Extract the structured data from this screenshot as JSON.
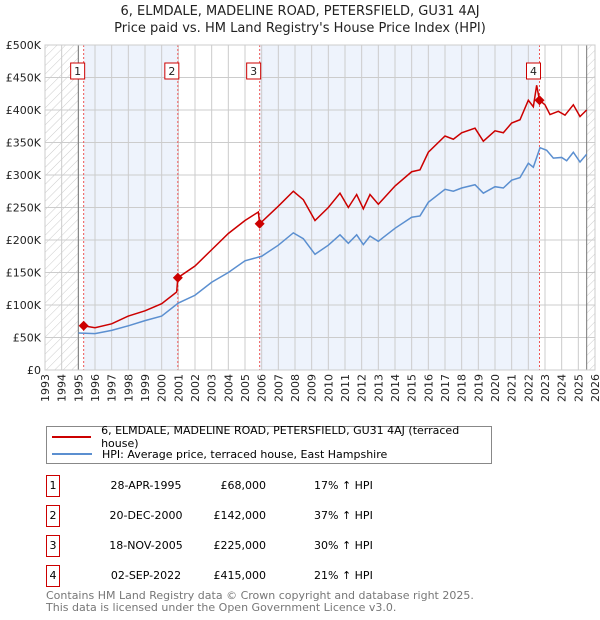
{
  "title_line1": "6, ELMDALE, MADELINE ROAD, PETERSFIELD, GU31 4AJ",
  "title_line2": "Price paid vs. HM Land Registry's House Price Index (HPI)",
  "chart_data": {
    "type": "line",
    "xlim": [
      1993,
      2026
    ],
    "ylim": [
      0,
      500000
    ],
    "yticks": [
      {
        "v": 0,
        "label": "£0"
      },
      {
        "v": 50000,
        "label": "£50K"
      },
      {
        "v": 100000,
        "label": "£100K"
      },
      {
        "v": 150000,
        "label": "£150K"
      },
      {
        "v": 200000,
        "label": "£200K"
      },
      {
        "v": 250000,
        "label": "£250K"
      },
      {
        "v": 300000,
        "label": "£300K"
      },
      {
        "v": 350000,
        "label": "£350K"
      },
      {
        "v": 400000,
        "label": "£400K"
      },
      {
        "v": 450000,
        "label": "£450K"
      },
      {
        "v": 500000,
        "label": "£500K"
      }
    ],
    "xticks": [
      "1993",
      "1994",
      "1995",
      "1996",
      "1997",
      "1998",
      "1999",
      "2000",
      "2001",
      "2002",
      "2003",
      "2004",
      "2005",
      "2006",
      "2007",
      "2008",
      "2009",
      "2010",
      "2011",
      "2012",
      "2013",
      "2014",
      "2015",
      "2016",
      "2017",
      "2018",
      "2019",
      "2020",
      "2021",
      "2022",
      "2023",
      "2024",
      "2025",
      "2026"
    ],
    "data_range": [
      1995.0,
      2025.5
    ],
    "series": [
      {
        "name": "6, ELMDALE, MADELINE ROAD, PETERSFIELD, GU31 4AJ (terraced house)",
        "color": "#cc0000",
        "x": [
          1995.3,
          1996,
          1997,
          1998,
          1999,
          2000,
          2000.9,
          2000.97,
          2002,
          2003,
          2004,
          2005,
          2005.8,
          2005.88,
          2007,
          2007.9,
          2008.5,
          2009.2,
          2010,
          2010.7,
          2011.2,
          2011.7,
          2012.1,
          2012.5,
          2013,
          2014,
          2015,
          2015.5,
          2016,
          2017,
          2017.5,
          2018,
          2018.8,
          2019.3,
          2020,
          2020.5,
          2021,
          2021.5,
          2022,
          2022.3,
          2022.5,
          2022.67,
          2023,
          2023.3,
          2023.8,
          2024.2,
          2024.7,
          2025.1,
          2025.5
        ],
        "y": [
          68000,
          65000,
          71000,
          83000,
          91000,
          102000,
          120000,
          142000,
          160000,
          185000,
          210000,
          230000,
          243000,
          225000,
          252000,
          275000,
          262000,
          230000,
          250000,
          272000,
          250000,
          270000,
          248000,
          270000,
          255000,
          283000,
          305000,
          308000,
          335000,
          360000,
          355000,
          365000,
          372000,
          352000,
          368000,
          365000,
          380000,
          385000,
          415000,
          405000,
          438000,
          415000,
          408000,
          393000,
          398000,
          392000,
          408000,
          390000,
          400000
        ]
      },
      {
        "name": "HPI: Average price, terraced house, East Hampshire",
        "color": "#5b8fd0",
        "x": [
          1995.0,
          1996,
          1997,
          1998,
          1999,
          2000,
          2001,
          2002,
          2003,
          2004,
          2005,
          2006,
          2007,
          2007.9,
          2008.5,
          2009.2,
          2010,
          2010.7,
          2011.2,
          2011.7,
          2012.1,
          2012.5,
          2013,
          2014,
          2015,
          2015.5,
          2016,
          2017,
          2017.5,
          2018,
          2018.8,
          2019.3,
          2020,
          2020.5,
          2021,
          2021.5,
          2022,
          2022.3,
          2022.7,
          2023.1,
          2023.5,
          2024,
          2024.3,
          2024.7,
          2025.1,
          2025.5
        ],
        "y": [
          57000,
          56000,
          61000,
          68000,
          76000,
          83000,
          103000,
          115000,
          135000,
          150000,
          168000,
          175000,
          192000,
          211000,
          202000,
          178000,
          192000,
          208000,
          195000,
          208000,
          193000,
          206000,
          198000,
          218000,
          235000,
          237000,
          258000,
          278000,
          275000,
          280000,
          285000,
          272000,
          282000,
          280000,
          292000,
          296000,
          318000,
          312000,
          342000,
          338000,
          326000,
          327000,
          322000,
          335000,
          320000,
          332000
        ]
      }
    ],
    "sales": [
      {
        "label": "1",
        "x": 1995.32,
        "y": 68000,
        "date": "28-APR-1995",
        "price": "£68,000",
        "hpi": "17% ↑ HPI"
      },
      {
        "label": "2",
        "x": 2000.97,
        "y": 142000,
        "date": "20-DEC-2000",
        "price": "£142,000",
        "hpi": "37% ↑ HPI"
      },
      {
        "label": "3",
        "x": 2005.88,
        "y": 225000,
        "date": "18-NOV-2005",
        "price": "£225,000",
        "hpi": "30% ↑ HPI"
      },
      {
        "label": "4",
        "x": 2022.67,
        "y": 415000,
        "date": "02-SEP-2022",
        "price": "£415,000",
        "hpi": "21% ↑ HPI"
      }
    ]
  },
  "legend": {
    "property": "6, ELMDALE, MADELINE ROAD, PETERSFIELD, GU31 4AJ (terraced house)",
    "hpi": "HPI: Average price, terraced house, East Hampshire"
  },
  "footer": {
    "line1": "Contains HM Land Registry data © Crown copyright and database right 2025.",
    "line2": "This data is licensed under the Open Government Licence v3.0."
  }
}
